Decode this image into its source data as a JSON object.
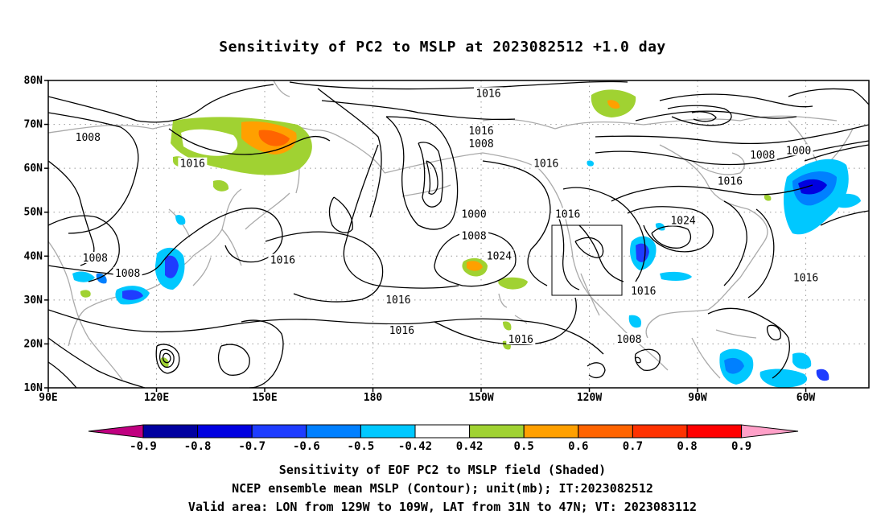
{
  "title": "Sensitivity of PC2 to MSLP at 2023082512 +1.0 day",
  "map": {
    "lat_ticks": [
      "80N",
      "70N",
      "60N",
      "50N",
      "40N",
      "30N",
      "20N",
      "10N"
    ],
    "lon_ticks": [
      "90E",
      "120E",
      "150E",
      "180",
      "150W",
      "120W",
      "90W",
      "60W"
    ],
    "contour_labels": [
      {
        "text": "1016",
        "lon": -148,
        "lat": 77
      },
      {
        "text": "1016",
        "lon": -150,
        "lat": 68.5
      },
      {
        "text": "1008",
        "lon": -150,
        "lat": 65.5
      },
      {
        "text": "1016",
        "lon": -132,
        "lat": 61
      },
      {
        "text": "1008",
        "lon": 101,
        "lat": 67
      },
      {
        "text": "1016",
        "lon": 130,
        "lat": 61
      },
      {
        "text": "1000",
        "lon": -152,
        "lat": 49.5
      },
      {
        "text": "1008",
        "lon": -152,
        "lat": 44.5
      },
      {
        "text": "1016",
        "lon": -126,
        "lat": 49.5
      },
      {
        "text": "1016",
        "lon": 155,
        "lat": 39
      },
      {
        "text": "1024",
        "lon": -145,
        "lat": 40
      },
      {
        "text": "1016",
        "lon": -173,
        "lat": 30
      },
      {
        "text": "1016",
        "lon": -172,
        "lat": 23
      },
      {
        "text": "1016",
        "lon": -139,
        "lat": 21
      },
      {
        "text": "1008",
        "lon": 103,
        "lat": 39.5
      },
      {
        "text": "1008",
        "lon": 112,
        "lat": 36
      },
      {
        "text": "1016",
        "lon": -105,
        "lat": 32
      },
      {
        "text": "1008",
        "lon": -109,
        "lat": 21
      },
      {
        "text": "1024",
        "lon": -94,
        "lat": 48
      },
      {
        "text": "1016",
        "lon": -81,
        "lat": 57
      },
      {
        "text": "1008",
        "lon": -72,
        "lat": 63
      },
      {
        "text": "1000",
        "lon": -62,
        "lat": 64
      },
      {
        "text": "1016",
        "lon": -60,
        "lat": 35
      }
    ]
  },
  "colorbar": {
    "labels": [
      "-0.9",
      "-0.8",
      "-0.7",
      "-0.6",
      "-0.5",
      "-0.42",
      "0.42",
      "0.5",
      "0.6",
      "0.7",
      "0.8",
      "0.9"
    ],
    "colors": [
      "#0000a0",
      "#0000e0",
      "#1e3cff",
      "#0080ff",
      "#00c8ff",
      "#ffffff",
      "#a0d232",
      "#ffa000",
      "#ff6400",
      "#ff3200",
      "#ff0000"
    ],
    "below_color": "#c00080",
    "above_color": "#ffa0c8"
  },
  "caption": [
    "Sensitivity of EOF PC2 to MSLP field (Shaded)",
    "NCEP ensemble mean MSLP (Contour); unit(mb); IT:2023082512",
    "Valid area: LON from 129W to 109W, LAT from 31N to 47N; VT: 2023083112"
  ]
}
